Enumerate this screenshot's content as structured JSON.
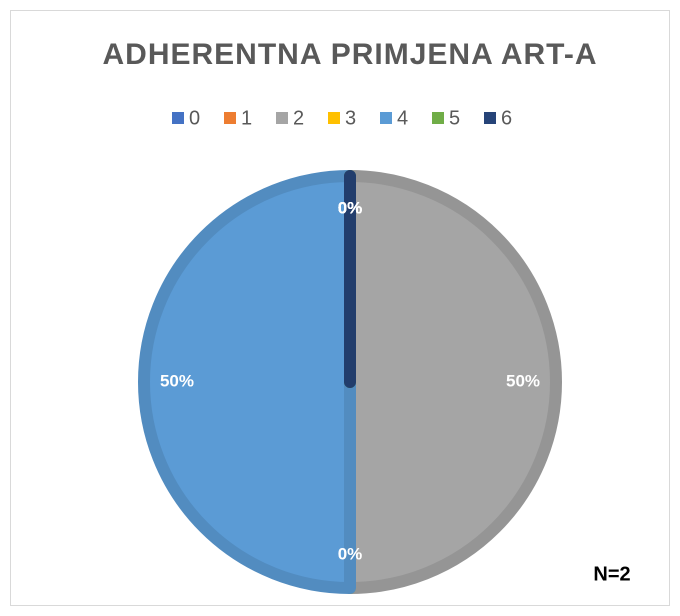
{
  "chart_data": {
    "type": "pie",
    "title": "ADHERENTNA PRIMJENA ART-A",
    "categories": [
      "0",
      "1",
      "2",
      "3",
      "4",
      "5",
      "6"
    ],
    "values": [
      0,
      0,
      50,
      0,
      50,
      0,
      0
    ],
    "value_labels": [
      "0%",
      "0%",
      "50%",
      "0%",
      "50%",
      "0%",
      "0%"
    ],
    "colors": [
      "#4472c4",
      "#ed7d31",
      "#a5a5a5",
      "#ffc000",
      "#5b9bd5",
      "#70ad47",
      "#264478"
    ],
    "annotation": "N=2",
    "legend": "top"
  }
}
